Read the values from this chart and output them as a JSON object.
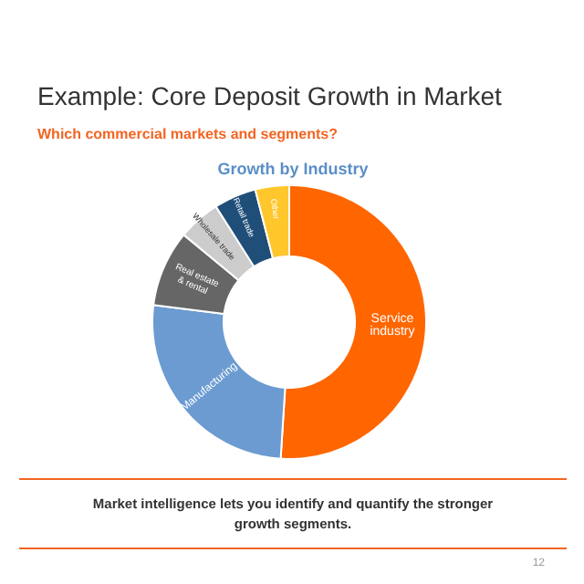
{
  "chart_data": {
    "type": "donut",
    "title": "Example: Core Deposit Growth in Market",
    "subtitle": "Which commercial markets and segments?",
    "xlabel": "Growth by Industry",
    "categories": [
      "Service industry",
      "Manufacturing",
      "Real estate & rental",
      "Wholesale trade",
      "Retail trade",
      "Other"
    ],
    "values": [
      51,
      26,
      9,
      5,
      5,
      4
    ],
    "colors": [
      "#ff6600",
      "#6b9bd1",
      "#666666",
      "#cccccc",
      "#1f4e79",
      "#ffc72c"
    ],
    "annotations": [
      "Market intelligence lets you identify and quantify the stronger growth segments.",
      "12"
    ]
  }
}
